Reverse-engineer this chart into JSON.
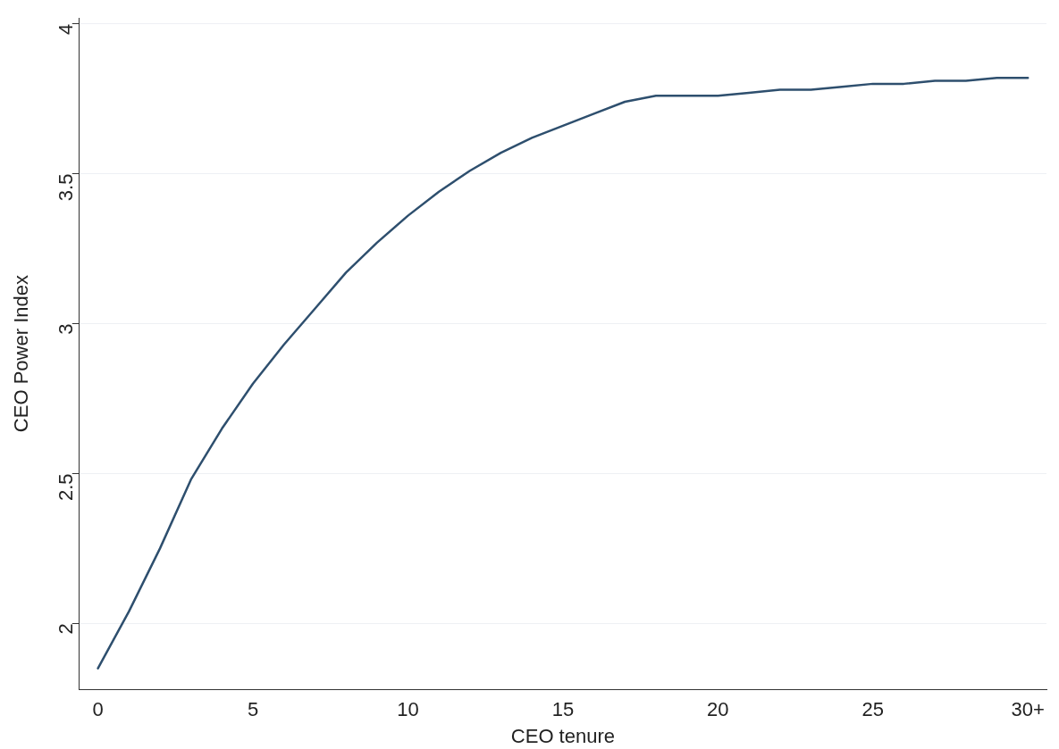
{
  "chart_data": {
    "type": "line",
    "xlabel": "CEO tenure",
    "ylabel": "CEO Power Index",
    "x": [
      0,
      1,
      2,
      3,
      4,
      5,
      6,
      7,
      8,
      9,
      10,
      11,
      12,
      13,
      14,
      15,
      16,
      17,
      18,
      19,
      20,
      21,
      22,
      23,
      24,
      25,
      26,
      27,
      28,
      29,
      30
    ],
    "series": [
      {
        "color": "#2e4f6e",
        "values": [
          1.85,
          2.04,
          2.25,
          2.48,
          2.65,
          2.8,
          2.93,
          3.05,
          3.17,
          3.27,
          3.36,
          3.44,
          3.51,
          3.57,
          3.62,
          3.66,
          3.7,
          3.74,
          3.76,
          3.76,
          3.76,
          3.77,
          3.78,
          3.78,
          3.79,
          3.8,
          3.8,
          3.81,
          3.81,
          3.82,
          3.82
        ]
      }
    ],
    "xlim": [
      -0.6,
      30.6
    ],
    "xticks": [
      0,
      5,
      10,
      15,
      20,
      25,
      {
        "value": 30,
        "label": "30+"
      }
    ],
    "ylim": [
      1.78,
      4.02
    ],
    "yticks": [
      2,
      2.5,
      3,
      3.5,
      4
    ],
    "grid": "y",
    "legend": false,
    "marker": "none",
    "line_style": "solid"
  }
}
